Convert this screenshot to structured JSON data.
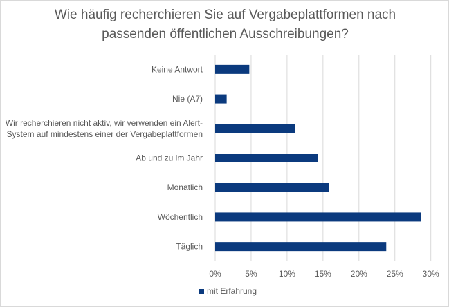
{
  "chart_data": {
    "type": "bar",
    "orientation": "horizontal",
    "title": [
      "Wie häufig recherchieren Sie auf Vergabeplattformen nach",
      "passenden öffentlichen Ausschreibungen?"
    ],
    "categories": [
      [
        "Keine Antwort"
      ],
      [
        "Nie (A7)"
      ],
      [
        "Wir recherchieren nicht aktiv, wir verwenden ein Alert-",
        "System auf mindestens einer der Vergabeplattformen"
      ],
      [
        "Ab und zu im Jahr"
      ],
      [
        "Monatlich"
      ],
      [
        "Wöchentlich"
      ],
      [
        "Täglich"
      ]
    ],
    "series": [
      {
        "name": "mit Erfahrung",
        "values": [
          4.75,
          1.6,
          11.1,
          14.3,
          15.8,
          28.6,
          23.8
        ],
        "color": "#0b3a7e"
      }
    ],
    "xlim": [
      0,
      30
    ],
    "xticks": [
      "0%",
      "5%",
      "10%",
      "15%",
      "20%",
      "25%",
      "30%"
    ],
    "grid": true,
    "legend_position": "bottom"
  }
}
